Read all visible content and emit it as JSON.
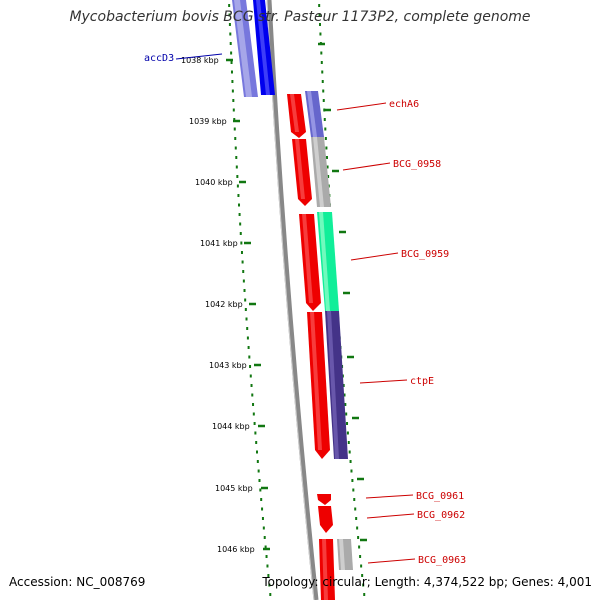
{
  "title": "Mycobacterium bovis BCG str. Pasteur 1173P2, complete genome",
  "footer": {
    "accession": "Accession: NC_008769",
    "topology": "Topology: circular; Length: 4,374,522 bp; Genes: 4,001"
  },
  "colors": {
    "backbone": "#888888",
    "tick": "#117711",
    "label_red": "#cc0000",
    "label_blue": "#0000aa"
  },
  "kbp_ticks": [
    "1038 kbp",
    "1039 kbp",
    "1040 kbp",
    "1041 kbp",
    "1042 kbp",
    "1043 kbp",
    "1044 kbp",
    "1045 kbp",
    "1046 kbp"
  ],
  "genes": [
    {
      "name": "accD3",
      "color": "#0000aa"
    },
    {
      "name": "echA6",
      "color": "#cc0000"
    },
    {
      "name": "BCG_0958",
      "color": "#cc0000"
    },
    {
      "name": "BCG_0959",
      "color": "#cc0000"
    },
    {
      "name": "ctpE",
      "color": "#cc0000"
    },
    {
      "name": "BCG_0961",
      "color": "#cc0000"
    },
    {
      "name": "BCG_0962",
      "color": "#cc0000"
    },
    {
      "name": "BCG_0963",
      "color": "#cc0000"
    }
  ]
}
